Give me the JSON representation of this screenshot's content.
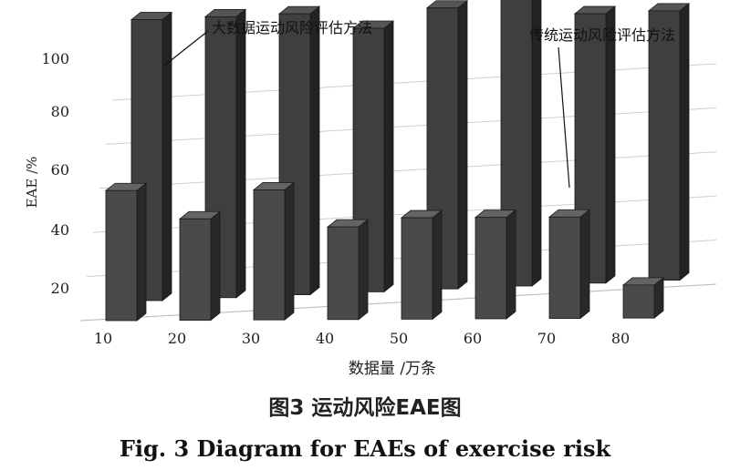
{
  "chart_data": {
    "type": "bar",
    "style": "3d-grouped-bar",
    "categories": [
      "10",
      "20",
      "30",
      "40",
      "50",
      "60",
      "70",
      "80"
    ],
    "series": [
      {
        "name": "传统运动风险评估方法",
        "values": [
          59,
          46,
          59,
          42,
          46,
          46,
          46,
          15
        ],
        "color": "#4a4a4a"
      },
      {
        "name": "大数据运动风险评估方法",
        "values": [
          97,
          97,
          97,
          91,
          97,
          99,
          93,
          93
        ],
        "color": "#3f3f3f"
      }
    ],
    "xlabel": "数据量 /万条",
    "ylabel": "EAE /%",
    "yticks": [
      "20",
      "40",
      "60",
      "80",
      "100"
    ],
    "ylim": [
      0,
      100
    ],
    "grid": true
  },
  "caption": {
    "cn": "图3  运动风险EAE图",
    "en": "Fig. 3  Diagram for EAEs of exercise risk"
  }
}
